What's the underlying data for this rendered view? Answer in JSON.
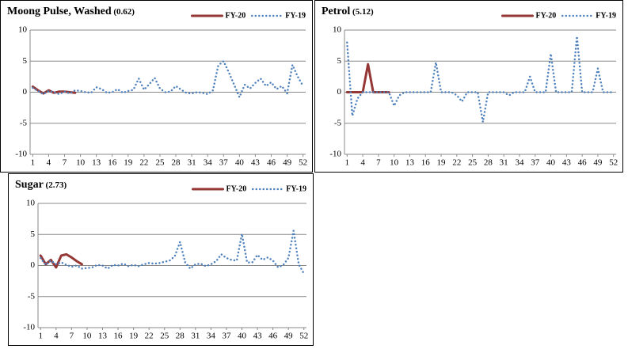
{
  "chart_data": [
    {
      "type": "line",
      "title": "Moong Pulse, Washed",
      "subtitle": "(0.62)",
      "x": [
        1,
        2,
        3,
        4,
        5,
        6,
        7,
        8,
        9,
        10,
        11,
        12,
        13,
        14,
        15,
        16,
        17,
        18,
        19,
        20,
        21,
        22,
        23,
        24,
        25,
        26,
        27,
        28,
        29,
        30,
        31,
        32,
        33,
        34,
        35,
        36,
        37,
        38,
        39,
        40,
        41,
        42,
        43,
        44,
        45,
        46,
        47,
        48,
        49,
        50,
        51,
        52
      ],
      "xlim": [
        0.5,
        52.5
      ],
      "xticks": [
        1,
        4,
        7,
        10,
        13,
        16,
        19,
        22,
        25,
        28,
        31,
        34,
        37,
        40,
        43,
        46,
        49,
        52
      ],
      "ylim": [
        -10,
        10
      ],
      "yticks": [
        -10,
        -5,
        0,
        5,
        10
      ],
      "grid": true,
      "legend": "top-right",
      "series": [
        {
          "name": "FY-20",
          "color": "#953735",
          "dash": "solid",
          "values": [
            0.9,
            0.3,
            -0.2,
            0.3,
            -0.1,
            0.1,
            0.1,
            0,
            -0.1,
            null,
            null,
            null,
            null,
            null,
            null,
            null,
            null,
            null,
            null,
            null,
            null,
            null,
            null,
            null,
            null,
            null,
            null,
            null,
            null,
            null,
            null,
            null,
            null,
            null,
            null,
            null,
            null,
            null,
            null,
            null,
            null,
            null,
            null,
            null,
            null,
            null,
            null,
            null,
            null,
            null,
            null,
            null
          ]
        },
        {
          "name": "FY-19",
          "color": "#4f81bd",
          "dash": "dotted",
          "values": [
            0.7,
            0.2,
            -0.3,
            0.2,
            0,
            -0.3,
            0.1,
            -0.2,
            0.3,
            0.2,
            0,
            -0.1,
            0.8,
            0.5,
            -0.1,
            0,
            0.5,
            -0.1,
            0.2,
            0.4,
            2.2,
            0.4,
            1.3,
            2.3,
            0.6,
            0,
            0.1,
            1.0,
            0.4,
            -0.1,
            -0.2,
            0,
            -0.1,
            -0.3,
            0.3,
            4.3,
            5.0,
            3.2,
            1.2,
            -0.8,
            1.2,
            0.6,
            1.5,
            2.2,
            1.0,
            1.6,
            0.5,
            1.0,
            -0.2,
            4.4,
            2.5,
            1.0
          ]
        }
      ]
    },
    {
      "type": "line",
      "title": "Petrol",
      "subtitle": "(5.12)",
      "x": [
        1,
        2,
        3,
        4,
        5,
        6,
        7,
        8,
        9,
        10,
        11,
        12,
        13,
        14,
        15,
        16,
        17,
        18,
        19,
        20,
        21,
        22,
        23,
        24,
        25,
        26,
        27,
        28,
        29,
        30,
        31,
        32,
        33,
        34,
        35,
        36,
        37,
        38,
        39,
        40,
        41,
        42,
        43,
        44,
        45,
        46,
        47,
        48,
        49,
        50,
        51,
        52
      ],
      "xlim": [
        0.5,
        52.5
      ],
      "xticks": [
        1,
        4,
        7,
        10,
        13,
        16,
        19,
        22,
        25,
        28,
        31,
        34,
        37,
        40,
        43,
        46,
        49,
        52
      ],
      "ylim": [
        -10,
        10
      ],
      "yticks": [
        -10,
        -5,
        0,
        5,
        10
      ],
      "grid": true,
      "legend": "top-right",
      "series": [
        {
          "name": "FY-20",
          "color": "#953735",
          "dash": "solid",
          "values": [
            0,
            0,
            0,
            0,
            4.5,
            0,
            0,
            0,
            0,
            null,
            null,
            null,
            null,
            null,
            null,
            null,
            null,
            null,
            null,
            null,
            null,
            null,
            null,
            null,
            null,
            null,
            null,
            null,
            null,
            null,
            null,
            null,
            null,
            null,
            null,
            null,
            null,
            null,
            null,
            null,
            null,
            null,
            null,
            null,
            null,
            null,
            null,
            null,
            null,
            null,
            null,
            null
          ]
        },
        {
          "name": "FY-19",
          "color": "#4f81bd",
          "dash": "dotted",
          "values": [
            8,
            -3.8,
            -1,
            0,
            0,
            0,
            0,
            0,
            0,
            -2.2,
            -0.5,
            0,
            0,
            0,
            0,
            0,
            0,
            4.8,
            0,
            0,
            0,
            -0.5,
            -1.5,
            0,
            0,
            0,
            -4.8,
            0,
            0,
            0,
            0,
            -0.5,
            0,
            0,
            0,
            2.5,
            0,
            0,
            0,
            6.2,
            0,
            0,
            0,
            0,
            9.0,
            0,
            0,
            0,
            3.8,
            0,
            0,
            0
          ]
        }
      ]
    },
    {
      "type": "line",
      "title": "Sugar",
      "subtitle": "(2.73)",
      "x": [
        1,
        2,
        3,
        4,
        5,
        6,
        7,
        8,
        9,
        10,
        11,
        12,
        13,
        14,
        15,
        16,
        17,
        18,
        19,
        20,
        21,
        22,
        23,
        24,
        25,
        26,
        27,
        28,
        29,
        30,
        31,
        32,
        33,
        34,
        35,
        36,
        37,
        38,
        39,
        40,
        41,
        42,
        43,
        44,
        45,
        46,
        47,
        48,
        49,
        50,
        51,
        52
      ],
      "xlim": [
        0.5,
        52.5
      ],
      "xticks": [
        1,
        4,
        7,
        10,
        13,
        16,
        19,
        22,
        25,
        28,
        31,
        34,
        37,
        40,
        43,
        46,
        49,
        52
      ],
      "ylim": [
        -10,
        10
      ],
      "yticks": [
        -10,
        -5,
        0,
        5,
        10
      ],
      "grid": true,
      "legend": "top-right",
      "series": [
        {
          "name": "FY-20",
          "color": "#953735",
          "dash": "solid",
          "values": [
            1.6,
            0.2,
            0.9,
            -0.3,
            1.6,
            1.8,
            1.3,
            0.7,
            0.2,
            null,
            null,
            null,
            null,
            null,
            null,
            null,
            null,
            null,
            null,
            null,
            null,
            null,
            null,
            null,
            null,
            null,
            null,
            null,
            null,
            null,
            null,
            null,
            null,
            null,
            null,
            null,
            null,
            null,
            null,
            null,
            null,
            null,
            null,
            null,
            null,
            null,
            null,
            null,
            null,
            null,
            null,
            null
          ]
        },
        {
          "name": "FY-19",
          "color": "#4f81bd",
          "dash": "dotted",
          "values": [
            1.2,
            0.1,
            0.8,
            0.2,
            0.5,
            0.1,
            -0.2,
            0,
            -0.5,
            -0.4,
            -0.3,
            0.1,
            0,
            -0.5,
            0.1,
            0,
            0.3,
            -0.1,
            0.1,
            -0.1,
            0.2,
            0.4,
            0.3,
            0.4,
            0.6,
            0.8,
            1.5,
            3.8,
            0.5,
            -0.5,
            0.2,
            0.3,
            -0.1,
            0.2,
            0.7,
            1.8,
            1.2,
            0.9,
            0.8,
            5.1,
            0.5,
            0.5,
            1.7,
            0.9,
            1.3,
            0.8,
            -0.3,
            0.1,
            1.2,
            5.6,
            0.2,
            -1.3
          ]
        }
      ]
    }
  ]
}
